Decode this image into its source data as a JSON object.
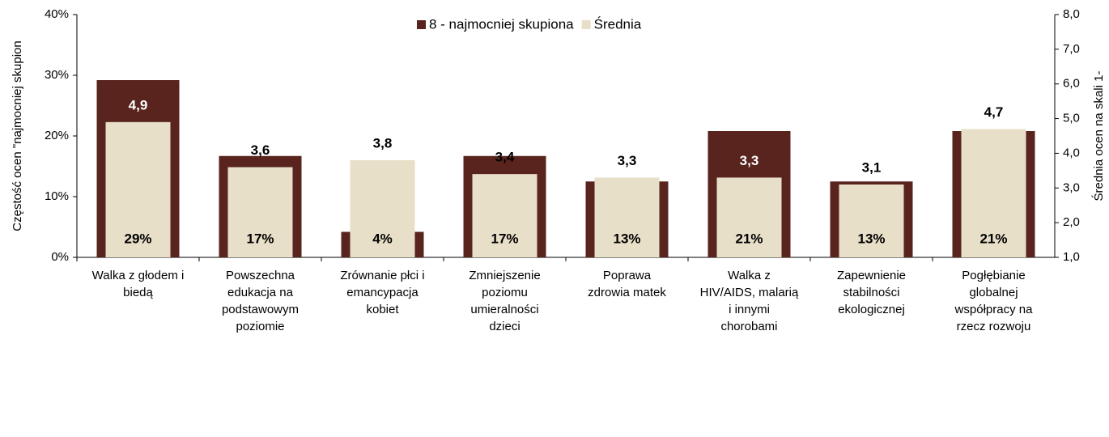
{
  "chart_data": {
    "type": "bar",
    "y_label": "Częstość ocen \"najmocniej skupion",
    "y2_label": "Średnia ocen na skali 1-",
    "categories": [
      [
        "Walka z głodem i",
        "biedą"
      ],
      [
        "Powszechna",
        "edukacja na",
        "podstawowym",
        "poziomie"
      ],
      [
        "Zrównanie płci i",
        "emancypacja",
        "kobiet"
      ],
      [
        "Zmniejszenie",
        "poziomu",
        "umieralności",
        "dzieci"
      ],
      [
        "Poprawa",
        "zdrowia matek"
      ],
      [
        "Walka z",
        "HIV/AIDS, malarią",
        "i innymi",
        "chorobami"
      ],
      [
        "Zapewnienie",
        "stabilności",
        "ekologicznej"
      ],
      [
        "Pogłębianie",
        "globalnej",
        "współpracy na",
        "rzecz rozwoju"
      ]
    ],
    "series": [
      {
        "name": "8 - najmocniej skupiona",
        "color": "#58241d",
        "axis": "y",
        "values": [
          29.2,
          16.7,
          4.2,
          16.7,
          12.5,
          20.8,
          12.5,
          20.8
        ],
        "value_labels": [
          "29%",
          "17%",
          "4%",
          "17%",
          "13%",
          "21%",
          "13%",
          "21%"
        ]
      },
      {
        "name": "Średnia",
        "color": "#e8dfc8",
        "axis": "y2",
        "values": [
          4.9,
          3.6,
          3.8,
          3.4,
          3.3,
          3.3,
          3.1,
          4.7
        ],
        "value_labels": [
          "4,9",
          "3,6",
          "3,8",
          "3,4",
          "3,3",
          "3,3",
          "3,1",
          "4,7"
        ]
      }
    ],
    "ylim": [
      0,
      40
    ],
    "yticks": [
      {
        "value": 0,
        "label": "0%"
      },
      {
        "value": 10,
        "label": "10%"
      },
      {
        "value": 20,
        "label": "20%"
      },
      {
        "value": 30,
        "label": "30%"
      },
      {
        "value": 40,
        "label": "40%"
      }
    ],
    "y2lim": [
      1,
      8
    ],
    "y2ticks": [
      {
        "value": 1,
        "label": "1,0"
      },
      {
        "value": 2,
        "label": "2,0"
      },
      {
        "value": 3,
        "label": "3,0"
      },
      {
        "value": 4,
        "label": "4,0"
      },
      {
        "value": 5,
        "label": "5,0"
      },
      {
        "value": 6,
        "label": "6,0"
      },
      {
        "value": 7,
        "label": "7,0"
      },
      {
        "value": 8,
        "label": "8,0"
      }
    ],
    "legend": "top"
  }
}
